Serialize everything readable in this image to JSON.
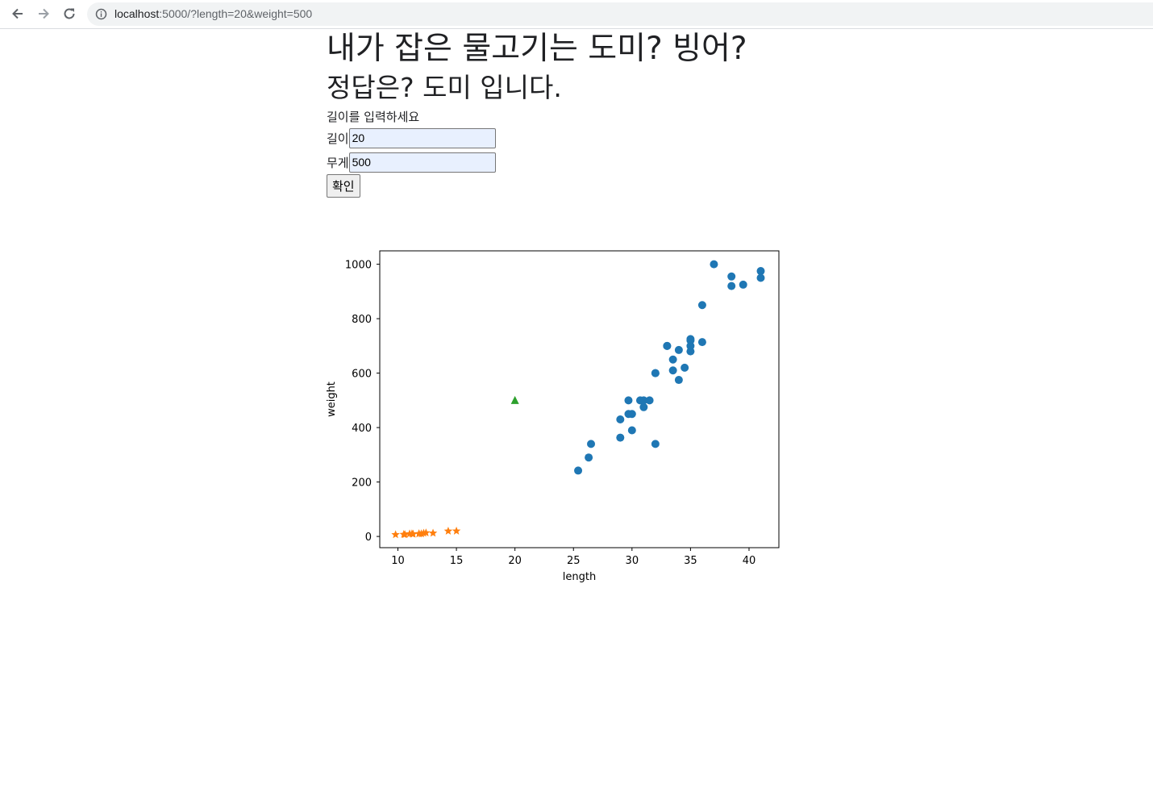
{
  "browser": {
    "url_host": "localhost",
    "url_rest": ":5000/?length=20&weight=500"
  },
  "page": {
    "question": "내가 잡은 물고기는 도미? 빙어?",
    "answer": "정답은? 도미 입니다.",
    "prompt": "길이를 입력하세요",
    "length_label": "길이",
    "length_value": "20",
    "weight_label": "무게",
    "weight_value": "500",
    "submit_label": "확인"
  },
  "colors": {
    "bream": "#1f77b4",
    "smelt": "#ff7f0e",
    "input_point": "#2ca02c"
  },
  "chart_data": {
    "type": "scatter",
    "xlabel": "length",
    "ylabel": "weight",
    "xlim": [
      8.45,
      42.55
    ],
    "ylim": [
      -41.2,
      1049.2
    ],
    "x_ticks": [
      10,
      15,
      20,
      25,
      30,
      35,
      40
    ],
    "y_ticks": [
      0,
      200,
      400,
      600,
      800,
      1000
    ],
    "series": [
      {
        "marker": "circle",
        "color": "#1f77b4",
        "x": [
          25.4,
          26.3,
          26.5,
          29.0,
          29.0,
          29.7,
          29.7,
          30.0,
          30.0,
          30.7,
          31.0,
          31.0,
          31.5,
          32.0,
          32.0,
          32.0,
          33.0,
          33.0,
          33.5,
          33.5,
          34.0,
          34.0,
          34.5,
          35.0,
          35.0,
          35.0,
          35.0,
          36.0,
          36.0,
          37.0,
          38.5,
          38.5,
          39.5,
          41.0,
          41.0
        ],
        "y": [
          242,
          290,
          340,
          363,
          430,
          450,
          500,
          390,
          450,
          500,
          475,
          500,
          500,
          340,
          600,
          600,
          700,
          700,
          610,
          650,
          575,
          685,
          620,
          680,
          700,
          725,
          720,
          714,
          850,
          1000,
          920,
          955,
          925,
          975,
          950
        ]
      },
      {
        "marker": "star",
        "color": "#ff7f0e",
        "x": [
          9.8,
          10.5,
          10.6,
          11.0,
          11.2,
          11.3,
          11.8,
          11.8,
          12.0,
          12.2,
          12.4,
          13.0,
          14.3,
          15.0
        ],
        "y": [
          6.7,
          7.5,
          7.0,
          9.7,
          9.8,
          8.7,
          10.0,
          9.9,
          9.8,
          12.2,
          13.4,
          12.2,
          19.7,
          19.9
        ]
      },
      {
        "marker": "triangle",
        "color": "#2ca02c",
        "x": [
          20
        ],
        "y": [
          500
        ]
      }
    ]
  }
}
